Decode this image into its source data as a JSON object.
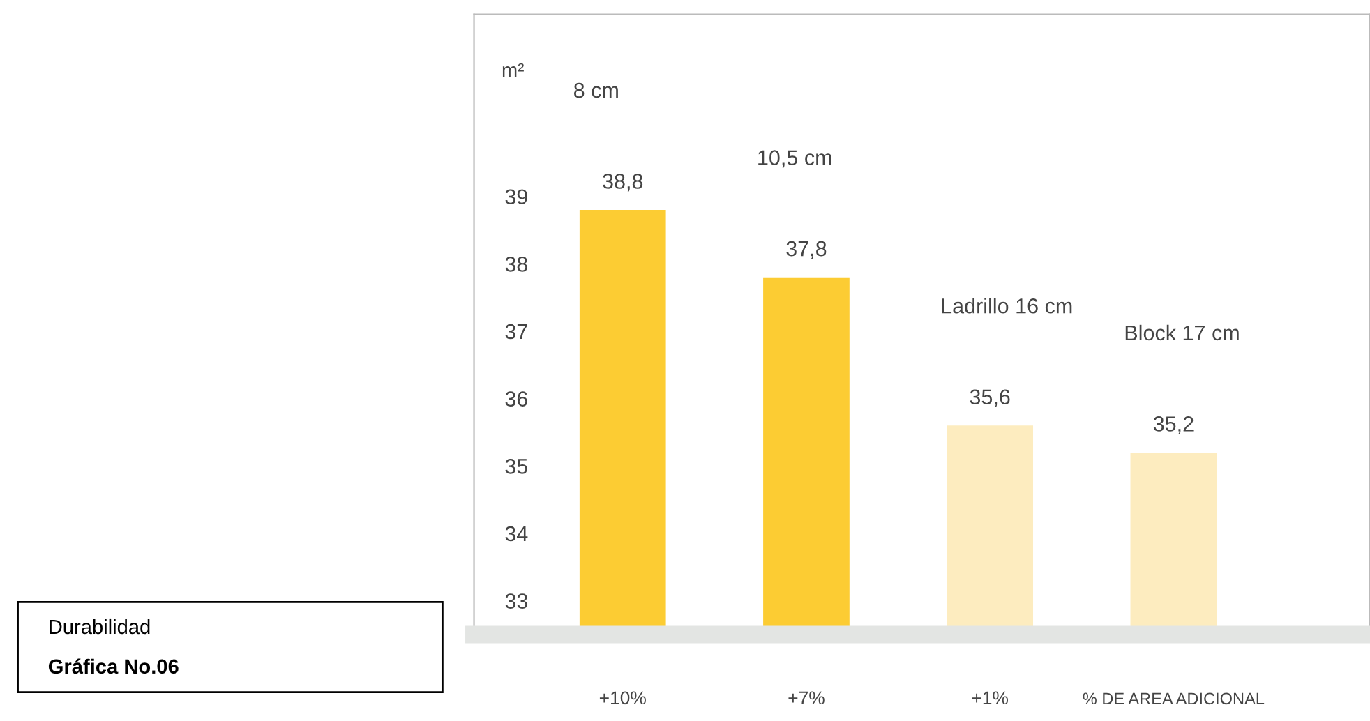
{
  "chart_data": {
    "type": "bar",
    "title": "Durabilidad",
    "subtitle": "Gráfica No.06",
    "ylabel": "m²",
    "xlabel": "% DE AREA ADICIONAL",
    "categories": [
      "8 cm",
      "10,5 cm",
      "Ladrillo 16 cm",
      "Block 17 cm"
    ],
    "values": [
      38.8,
      37.8,
      35.6,
      35.2
    ],
    "colors": [
      "#fccc33",
      "#fccc33",
      "#fdecbf",
      "#fdecbf"
    ],
    "value_labels": [
      "38,8",
      "37,8",
      "35,6",
      "35,2"
    ],
    "annotations": [
      "+10%",
      "+7%",
      "+1%"
    ],
    "ylim": [
      32.5,
      41.7
    ],
    "yticks": [
      33,
      34,
      35,
      36,
      37,
      38,
      39
    ],
    "grid": false
  }
}
